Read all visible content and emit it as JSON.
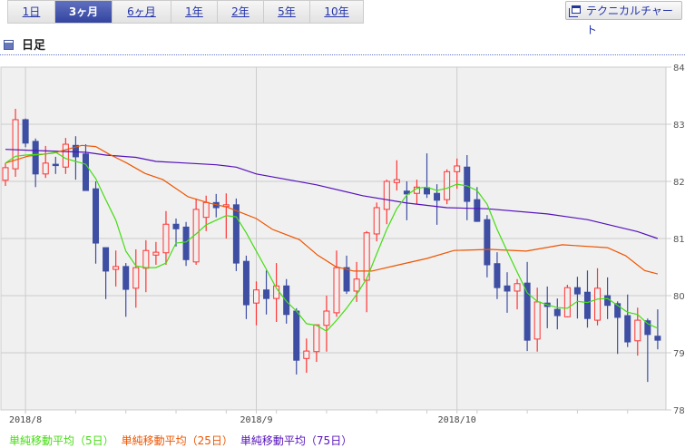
{
  "tabs": [
    {
      "label": "1日"
    },
    {
      "label": "3ヶ月",
      "active": true
    },
    {
      "label": "6ヶ月"
    },
    {
      "label": "1年"
    },
    {
      "label": "2年"
    },
    {
      "label": "5年"
    },
    {
      "label": "10年"
    }
  ],
  "technical_button": "テクニカルチャート",
  "section_title": "日足",
  "colors": {
    "up": "#ff3333",
    "down": "#3d4ea3",
    "ma5": "#44dd11",
    "ma25": "#ee5500",
    "ma75": "#5511bb",
    "grid": "#cccccc",
    "plot_bg": "#f0f0f0"
  },
  "chart_data": {
    "type": "candlestick",
    "ylim": [
      78,
      84
    ],
    "yticks": [
      "78",
      "79",
      "80",
      "81",
      "82",
      "83",
      "84"
    ],
    "xlabels": [
      {
        "index": 2,
        "label": "2018/8"
      },
      {
        "index": 25,
        "label": "2018/9"
      },
      {
        "index": 45,
        "label": "2018/10"
      }
    ],
    "candles": [
      [
        82.02,
        82.32,
        81.92,
        82.24
      ],
      [
        82.22,
        83.27,
        82.08,
        83.08
      ],
      [
        83.08,
        83.1,
        82.6,
        82.67
      ],
      [
        82.7,
        82.75,
        81.9,
        82.13
      ],
      [
        82.13,
        82.62,
        82.06,
        82.32
      ],
      [
        82.3,
        82.43,
        82.13,
        82.28
      ],
      [
        82.25,
        82.76,
        82.13,
        82.65
      ],
      [
        82.63,
        82.79,
        82.03,
        82.43
      ],
      [
        82.48,
        82.65,
        81.84,
        81.84
      ],
      [
        81.87,
        82.0,
        80.56,
        80.92
      ],
      [
        80.84,
        80.84,
        79.94,
        80.43
      ],
      [
        80.46,
        80.79,
        80.16,
        80.51
      ],
      [
        80.51,
        80.57,
        79.63,
        80.11
      ],
      [
        80.13,
        80.81,
        79.79,
        80.49
      ],
      [
        80.48,
        80.97,
        80.06,
        80.79
      ],
      [
        80.71,
        80.94,
        80.54,
        80.76
      ],
      [
        80.75,
        81.48,
        80.54,
        81.25
      ],
      [
        81.25,
        81.35,
        80.86,
        81.17
      ],
      [
        81.2,
        81.29,
        80.52,
        80.63
      ],
      [
        80.59,
        81.7,
        80.54,
        81.51
      ],
      [
        81.37,
        81.75,
        81.13,
        81.63
      ],
      [
        81.63,
        81.78,
        81.37,
        81.54
      ],
      [
        81.56,
        81.79,
        81.0,
        81.59
      ],
      [
        81.59,
        81.7,
        80.43,
        80.57
      ],
      [
        80.6,
        80.7,
        79.59,
        79.84
      ],
      [
        79.87,
        80.25,
        79.48,
        80.1
      ],
      [
        80.1,
        80.44,
        79.67,
        79.95
      ],
      [
        79.95,
        80.57,
        79.54,
        80.17
      ],
      [
        80.17,
        80.29,
        79.51,
        79.67
      ],
      [
        79.73,
        79.78,
        78.62,
        78.87
      ],
      [
        78.9,
        79.25,
        78.65,
        79.03
      ],
      [
        79.02,
        79.49,
        78.84,
        79.49
      ],
      [
        79.48,
        80.0,
        79.02,
        79.73
      ],
      [
        79.7,
        80.79,
        79.63,
        80.49
      ],
      [
        80.49,
        80.7,
        80.03,
        80.08
      ],
      [
        80.08,
        80.59,
        79.89,
        80.29
      ],
      [
        80.27,
        81.13,
        79.71,
        81.1
      ],
      [
        81.08,
        81.63,
        80.95,
        81.54
      ],
      [
        81.51,
        82.03,
        81.25,
        82.0
      ],
      [
        81.98,
        82.37,
        81.84,
        82.03
      ],
      [
        81.83,
        82.0,
        81.32,
        81.78
      ],
      [
        81.79,
        82.03,
        81.6,
        81.9
      ],
      [
        81.89,
        82.49,
        81.71,
        81.78
      ],
      [
        81.79,
        81.95,
        81.24,
        81.67
      ],
      [
        81.68,
        82.21,
        81.6,
        82.17
      ],
      [
        82.17,
        82.4,
        81.87,
        82.27
      ],
      [
        82.25,
        82.46,
        81.32,
        81.65
      ],
      [
        81.68,
        81.9,
        81.29,
        81.3
      ],
      [
        81.33,
        81.41,
        80.32,
        80.54
      ],
      [
        80.56,
        80.76,
        79.94,
        80.14
      ],
      [
        80.17,
        80.41,
        79.7,
        80.08
      ],
      [
        80.08,
        80.29,
        79.76,
        80.21
      ],
      [
        80.22,
        80.59,
        79.03,
        79.22
      ],
      [
        79.24,
        80.14,
        79.02,
        79.89
      ],
      [
        79.87,
        80.16,
        79.43,
        79.81
      ],
      [
        79.76,
        79.95,
        79.41,
        79.65
      ],
      [
        79.63,
        80.19,
        79.62,
        80.14
      ],
      [
        80.14,
        80.33,
        79.6,
        80.03
      ],
      [
        80.06,
        80.44,
        79.44,
        79.6
      ],
      [
        79.57,
        80.48,
        79.48,
        80.13
      ],
      [
        80.0,
        80.32,
        79.59,
        79.83
      ],
      [
        79.86,
        79.9,
        78.98,
        79.62
      ],
      [
        79.65,
        80.02,
        79.1,
        79.19
      ],
      [
        79.21,
        79.79,
        78.95,
        79.57
      ],
      [
        79.56,
        79.6,
        78.49,
        79.32
      ],
      [
        79.29,
        79.76,
        79.06,
        79.22
      ]
    ],
    "ma5": [
      82.32,
      82.44,
      82.46,
      82.47,
      82.48,
      82.51,
      82.4,
      82.35,
      82.3,
      82.05,
      81.68,
      81.32,
      80.78,
      80.52,
      80.49,
      80.49,
      80.57,
      80.92,
      80.94,
      81.08,
      81.24,
      81.32,
      81.4,
      81.38,
      81.1,
      80.78,
      80.46,
      80.13,
      79.9,
      79.73,
      79.51,
      79.48,
      79.38,
      79.57,
      79.78,
      80.02,
      80.3,
      80.73,
      81.16,
      81.52,
      81.76,
      81.88,
      81.9,
      81.84,
      81.88,
      81.95,
      81.92,
      81.84,
      81.6,
      81.16,
      80.78,
      80.41,
      80.05,
      79.9,
      79.84,
      79.79,
      79.78,
      79.9,
      79.88,
      79.94,
      79.95,
      79.83,
      79.71,
      79.67,
      79.51,
      79.43
    ],
    "ma25": [
      [
        0,
        82.32
      ],
      [
        2.2,
        82.44
      ],
      [
        4.9,
        82.5
      ],
      [
        7.6,
        82.63
      ],
      [
        9,
        82.61
      ],
      [
        10.3,
        82.48
      ],
      [
        12.1,
        82.32
      ],
      [
        13.9,
        82.14
      ],
      [
        15.7,
        82.03
      ],
      [
        18.2,
        81.73
      ],
      [
        20.3,
        81.62
      ],
      [
        22.1,
        81.55
      ],
      [
        25,
        81.35
      ],
      [
        26.6,
        81.16
      ],
      [
        29.3,
        80.98
      ],
      [
        31.1,
        80.71
      ],
      [
        32.9,
        80.51
      ],
      [
        34.7,
        80.43
      ],
      [
        36.5,
        80.43
      ],
      [
        39.2,
        80.54
      ],
      [
        42,
        80.65
      ],
      [
        44.7,
        80.79
      ],
      [
        48.3,
        80.81
      ],
      [
        51.9,
        80.78
      ],
      [
        55.5,
        80.89
      ],
      [
        57.3,
        80.87
      ],
      [
        60,
        80.84
      ],
      [
        61.8,
        80.7
      ],
      [
        63.7,
        80.44
      ],
      [
        65,
        80.38
      ]
    ],
    "ma75": [
      [
        0,
        82.56
      ],
      [
        3,
        82.54
      ],
      [
        8,
        82.51
      ],
      [
        10,
        82.46
      ],
      [
        13,
        82.42
      ],
      [
        15,
        82.35
      ],
      [
        18,
        82.32
      ],
      [
        21,
        82.29
      ],
      [
        23,
        82.25
      ],
      [
        25,
        82.13
      ],
      [
        31,
        81.94
      ],
      [
        35.6,
        81.75
      ],
      [
        40,
        81.62
      ],
      [
        44,
        81.54
      ],
      [
        48,
        81.52
      ],
      [
        54,
        81.43
      ],
      [
        58,
        81.33
      ],
      [
        63,
        81.12
      ],
      [
        65,
        81.0
      ]
    ],
    "legend": [
      "単純移動平均（5日）",
      "単純移動平均（25日）",
      "単純移動平均（75日）"
    ]
  }
}
